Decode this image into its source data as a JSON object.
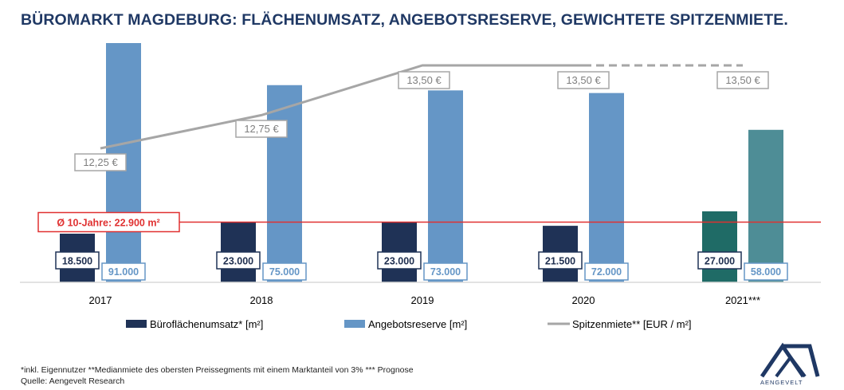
{
  "title": "BÜROMARKT MAGDEBURG: FLÄCHENUMSATZ, ANGEBOTSRESERVE, GEWICHTETE SPITZENMIETE.",
  "chart_data": {
    "type": "bar",
    "categories": [
      "2017",
      "2018",
      "2019",
      "2020",
      "2021***"
    ],
    "series": [
      {
        "name": "Büroflächenumsatz* [m²]",
        "type": "bar",
        "values": [
          18500,
          23000,
          23000,
          21500,
          27000
        ],
        "labels": [
          "18.500",
          "23.000",
          "23.000",
          "21.500",
          "27.000"
        ]
      },
      {
        "name": "Angebotsreserve [m²]",
        "type": "bar",
        "values": [
          91000,
          75000,
          73000,
          72000,
          58000
        ],
        "labels": [
          "91.000",
          "75.000",
          "73.000",
          "72.000",
          "58.000"
        ]
      },
      {
        "name": "Spitzenmiete** [EUR / m²]",
        "type": "line",
        "values": [
          12.25,
          12.75,
          13.5,
          13.5,
          13.5
        ],
        "labels": [
          "12,25 €",
          "12,75 €",
          "13,50 €",
          "13,50 €",
          "13,50 €"
        ]
      }
    ],
    "reference_line": {
      "label": "Ø 10-Jahre: 22.900 m²",
      "value": 22900
    },
    "legend_position": "bottom",
    "colors": {
      "umsatz": "#1f3256",
      "reserve": "#6596c6",
      "umsatz_forecast": "#1f6b66",
      "reserve_forecast": "#4e8d96",
      "line": "#a6a6a6",
      "reference": "#e03131"
    }
  },
  "footnote": "*inkl. Eigennutzer **Medianmiete des obersten Preissegments mit einem Marktanteil von 3% *** Prognose",
  "source": "Quelle: Aengevelt Research",
  "logo": {
    "text": "AENGEVELT"
  }
}
